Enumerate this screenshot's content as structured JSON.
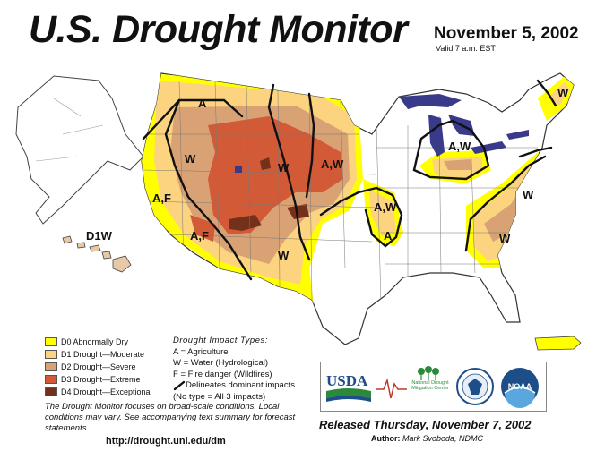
{
  "header": {
    "title": "U.S. Drought Monitor",
    "date": "November 5, 2002",
    "valid": "Valid 7 a.m. EST"
  },
  "colors": {
    "D0": "#ffff00",
    "D1": "#fcd37f",
    "D2": "#d9a275",
    "D3": "#d25a37",
    "D4": "#73301a",
    "lakes": "#3a3a8a"
  },
  "legend": [
    {
      "code": "D0",
      "label": "D0 Abnormally Dry"
    },
    {
      "code": "D1",
      "label": "D1 Drought—Moderate"
    },
    {
      "code": "D2",
      "label": "D2 Drought—Severe"
    },
    {
      "code": "D3",
      "label": "D3 Drought—Extreme"
    },
    {
      "code": "D4",
      "label": "D4 Drought—Exceptional"
    }
  ],
  "impact_types": {
    "heading": "Drought Impact Types:",
    "items": [
      "A = Agriculture",
      "W = Water (Hydrological)",
      "F = Fire danger (Wildfires)"
    ],
    "delineates": "Delineates dominant impacts",
    "no_type": "(No type = All 3 impacts)"
  },
  "map_labels": {
    "nw_a": "A",
    "w_w": "W",
    "cen_w": "W",
    "plains_aw": "A,W",
    "ca_af": "A,F",
    "sw_af": "A,F",
    "tx_w": "W",
    "mo_aw": "A,W",
    "mo_a": "A",
    "glakes_aw": "A,W",
    "maine_w": "W",
    "ne_w": "W",
    "se_w": "W",
    "hawaii": "D1W"
  },
  "note": "The Drought Monitor focuses on broad-scale conditions. Local conditions may vary. See accompanying text summary for forecast statements.",
  "url": "http://drought.unl.edu/dm",
  "logos": {
    "usda": "USDA",
    "ndmc": "National Drought Mitigation Center",
    "noaa": "NOAA"
  },
  "released": "Released Thursday, November 7, 2002",
  "author_label": "Author:",
  "author_name": "Mark Svoboda, NDMC"
}
